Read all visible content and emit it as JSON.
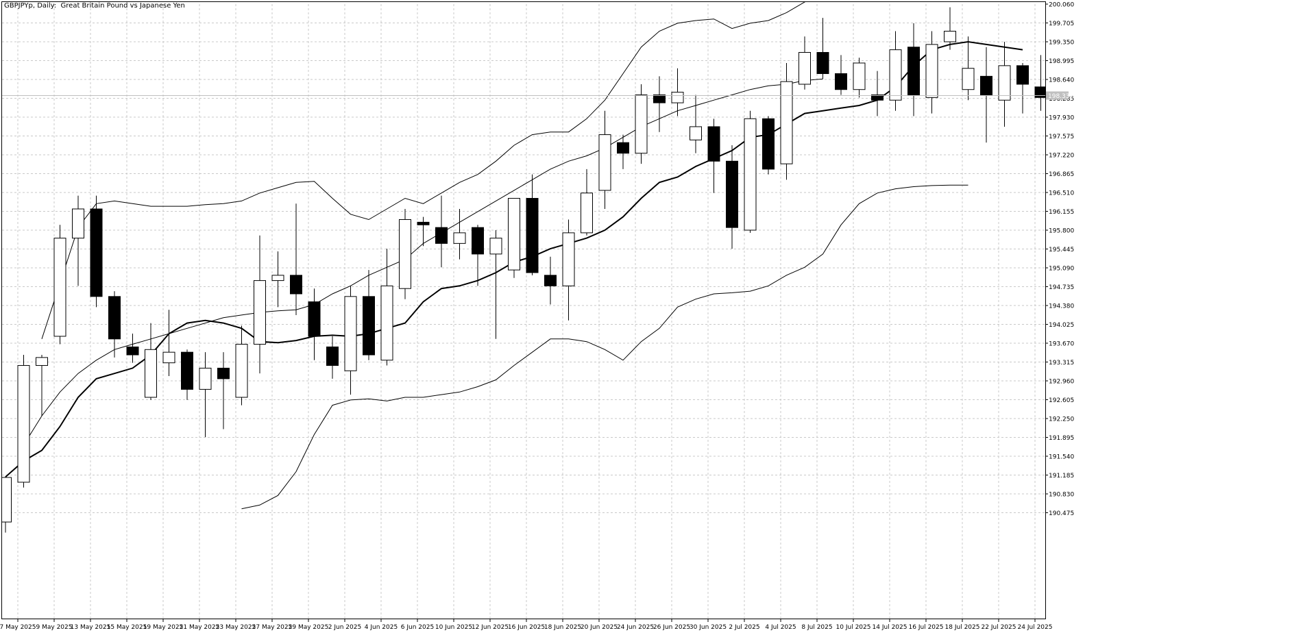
{
  "header": {
    "symbol_label": "GBPJPYp, Daily:",
    "description": "Great Britain Pound vs Japanese Yen"
  },
  "current_price_label": "198.337",
  "colors": {
    "background": "#ffffff",
    "grid": "#c8c8c8",
    "axis": "#000000",
    "candle_up_fill": "#ffffff",
    "candle_down_fill": "#000000",
    "candle_border": "#000000",
    "ma_line": "#000000",
    "band_line": "#000000",
    "price_tag_bg": "#c0c0c0",
    "price_tag_text": "#ffffff"
  },
  "chart_data": {
    "type": "candlestick",
    "title": "GBPJPYp, Daily:  Great Britain Pound vs Japanese Yen",
    "xlabel": "",
    "ylabel": "",
    "ylim": [
      190.12,
      200.06
    ],
    "y_ticks": [
      "200.060",
      "199.705",
      "199.350",
      "198.995",
      "198.640",
      "198.285",
      "197.930",
      "197.575",
      "197.220",
      "196.865",
      "196.510",
      "196.155",
      "195.800",
      "195.445",
      "195.090",
      "194.735",
      "194.380",
      "194.025",
      "193.670",
      "193.315",
      "192.960",
      "192.605",
      "192.250",
      "191.895",
      "191.540",
      "191.185",
      "190.830",
      "190.475"
    ],
    "x_labels": [
      "7 May 2025",
      "9 May 2025",
      "13 May 2025",
      "15 May 2025",
      "19 May 2025",
      "21 May 2025",
      "23 May 2025",
      "27 May 2025",
      "29 May 2025",
      "2 Jun 2025",
      "4 Jun 2025",
      "6 Jun 2025",
      "10 Jun 2025",
      "12 Jun 2025",
      "16 Jun 2025",
      "18 Jun 2025",
      "20 Jun 2025",
      "24 Jun 2025",
      "26 Jun 2025",
      "30 Jun 2025",
      "2 Jul 2025",
      "4 Jul 2025",
      "8 Jul 2025",
      "10 Jul 2025",
      "14 Jul 2025",
      "16 Jul 2025",
      "18 Jul 2025",
      "22 Jul 2025",
      "24 Jul 2025"
    ],
    "grid": true,
    "candles": [
      {
        "o": 190.3,
        "h": 191.15,
        "l": 190.1,
        "c": 191.14
      },
      {
        "o": 191.05,
        "h": 193.45,
        "l": 190.95,
        "c": 193.25
      },
      {
        "o": 193.25,
        "h": 193.45,
        "l": 192.3,
        "c": 193.4
      },
      {
        "o": 193.8,
        "h": 195.9,
        "l": 193.65,
        "c": 195.65
      },
      {
        "o": 195.65,
        "h": 196.45,
        "l": 194.75,
        "c": 196.2
      },
      {
        "o": 196.2,
        "h": 196.45,
        "l": 194.35,
        "c": 194.55
      },
      {
        "o": 194.55,
        "h": 194.65,
        "l": 193.4,
        "c": 193.75
      },
      {
        "o": 193.6,
        "h": 193.85,
        "l": 193.3,
        "c": 193.45
      },
      {
        "o": 192.65,
        "h": 194.05,
        "l": 192.6,
        "c": 193.55
      },
      {
        "o": 193.3,
        "h": 194.3,
        "l": 193.05,
        "c": 193.5
      },
      {
        "o": 193.5,
        "h": 193.55,
        "l": 192.6,
        "c": 192.8
      },
      {
        "o": 192.8,
        "h": 193.5,
        "l": 191.9,
        "c": 193.2
      },
      {
        "o": 193.2,
        "h": 193.5,
        "l": 192.05,
        "c": 193.0
      },
      {
        "o": 192.65,
        "h": 194.0,
        "l": 192.5,
        "c": 193.65
      },
      {
        "o": 193.65,
        "h": 195.7,
        "l": 193.1,
        "c": 194.85
      },
      {
        "o": 194.85,
        "h": 195.4,
        "l": 194.35,
        "c": 194.95
      },
      {
        "o": 194.95,
        "h": 196.3,
        "l": 194.2,
        "c": 194.6
      },
      {
        "o": 194.45,
        "h": 194.7,
        "l": 193.35,
        "c": 193.8
      },
      {
        "o": 193.6,
        "h": 193.8,
        "l": 193.0,
        "c": 193.25
      },
      {
        "o": 193.15,
        "h": 194.75,
        "l": 192.7,
        "c": 194.55
      },
      {
        "o": 194.55,
        "h": 195.05,
        "l": 193.35,
        "c": 193.45
      },
      {
        "o": 193.35,
        "h": 195.45,
        "l": 193.25,
        "c": 194.75
      },
      {
        "o": 194.7,
        "h": 196.2,
        "l": 194.5,
        "c": 196.0
      },
      {
        "o": 195.95,
        "h": 196.05,
        "l": 195.5,
        "c": 195.9
      },
      {
        "o": 195.85,
        "h": 196.45,
        "l": 195.1,
        "c": 195.55
      },
      {
        "o": 195.55,
        "h": 196.2,
        "l": 195.25,
        "c": 195.75
      },
      {
        "o": 195.85,
        "h": 195.9,
        "l": 194.75,
        "c": 195.35
      },
      {
        "o": 195.35,
        "h": 195.8,
        "l": 193.75,
        "c": 195.65
      },
      {
        "o": 195.05,
        "h": 196.4,
        "l": 194.9,
        "c": 196.4
      },
      {
        "o": 196.4,
        "h": 196.85,
        "l": 194.95,
        "c": 195.0
      },
      {
        "o": 194.95,
        "h": 195.3,
        "l": 194.4,
        "c": 194.75
      },
      {
        "o": 194.75,
        "h": 196.0,
        "l": 194.1,
        "c": 195.75
      },
      {
        "o": 195.75,
        "h": 196.95,
        "l": 195.7,
        "c": 196.5
      },
      {
        "o": 196.55,
        "h": 198.05,
        "l": 196.2,
        "c": 197.6
      },
      {
        "o": 197.45,
        "h": 197.6,
        "l": 196.95,
        "c": 197.25
      },
      {
        "o": 197.25,
        "h": 198.55,
        "l": 197.05,
        "c": 198.35
      },
      {
        "o": 198.35,
        "h": 198.7,
        "l": 197.65,
        "c": 198.2
      },
      {
        "o": 198.2,
        "h": 198.85,
        "l": 197.95,
        "c": 198.4
      },
      {
        "o": 197.5,
        "h": 198.35,
        "l": 197.25,
        "c": 197.75
      },
      {
        "o": 197.75,
        "h": 197.9,
        "l": 196.5,
        "c": 197.1
      },
      {
        "o": 197.1,
        "h": 197.4,
        "l": 195.45,
        "c": 195.85
      },
      {
        "o": 195.8,
        "h": 198.05,
        "l": 195.75,
        "c": 197.9
      },
      {
        "o": 197.9,
        "h": 197.95,
        "l": 196.85,
        "c": 196.95
      },
      {
        "o": 197.05,
        "h": 198.95,
        "l": 196.75,
        "c": 198.6
      },
      {
        "o": 198.55,
        "h": 199.45,
        "l": 198.45,
        "c": 199.15
      },
      {
        "o": 199.15,
        "h": 199.8,
        "l": 198.65,
        "c": 198.75
      },
      {
        "o": 198.75,
        "h": 199.1,
        "l": 198.35,
        "c": 198.45
      },
      {
        "o": 198.45,
        "h": 199.05,
        "l": 198.3,
        "c": 198.95
      },
      {
        "o": 198.35,
        "h": 198.8,
        "l": 197.95,
        "c": 198.25
      },
      {
        "o": 198.25,
        "h": 199.55,
        "l": 198.05,
        "c": 199.2
      },
      {
        "o": 199.25,
        "h": 199.7,
        "l": 197.95,
        "c": 198.35
      },
      {
        "o": 198.3,
        "h": 199.55,
        "l": 198.0,
        "c": 199.3
      },
      {
        "o": 199.35,
        "h": 200.0,
        "l": 199.2,
        "c": 199.55
      },
      {
        "o": 198.45,
        "h": 199.45,
        "l": 198.25,
        "c": 198.85
      },
      {
        "o": 198.7,
        "h": 199.25,
        "l": 197.45,
        "c": 198.35
      },
      {
        "o": 198.25,
        "h": 199.35,
        "l": 197.75,
        "c": 198.9
      },
      {
        "o": 198.9,
        "h": 198.95,
        "l": 198.0,
        "c": 198.55
      },
      {
        "o": 198.5,
        "h": 199.1,
        "l": 198.05,
        "c": 198.3
      }
    ],
    "ma": [
      191.15,
      191.45,
      191.65,
      192.1,
      192.65,
      193.0,
      193.1,
      193.2,
      193.45,
      193.85,
      194.05,
      194.1,
      194.05,
      193.95,
      193.7,
      193.68,
      193.72,
      193.8,
      193.82,
      193.8,
      193.85,
      193.95,
      194.05,
      194.45,
      194.7,
      194.75,
      194.85,
      195.0,
      195.2,
      195.3,
      195.45,
      195.55,
      195.65,
      195.8,
      196.05,
      196.4,
      196.7,
      196.8,
      197.0,
      197.15,
      197.3,
      197.55,
      197.6,
      197.8,
      198.0,
      198.05,
      198.1,
      198.15,
      198.25,
      198.5,
      198.9,
      199.2,
      199.3,
      199.35,
      199.3,
      199.25,
      199.2
    ],
    "upper_band": [
      null,
      null,
      193.75,
      194.8,
      195.85,
      196.3,
      196.35,
      196.3,
      196.25,
      196.25,
      196.25,
      196.28,
      196.3,
      196.35,
      196.5,
      196.6,
      196.7,
      196.72,
      196.4,
      196.1,
      196.0,
      196.2,
      196.4,
      196.3,
      196.5,
      196.7,
      196.85,
      197.1,
      197.4,
      197.6,
      197.65,
      197.65,
      197.9,
      198.25,
      198.75,
      199.25,
      199.55,
      199.7,
      199.75,
      199.78,
      199.6,
      199.7,
      199.75,
      199.9,
      200.1,
      200.3,
      200.5,
      200.7,
      200.9,
      200.8,
      200.8,
      200.85,
      200.88,
      200.9,
      200.95
    ],
    "middle_band": [
      null,
      191.75,
      192.3,
      192.75,
      193.1,
      193.35,
      193.55,
      193.65,
      193.75,
      193.85,
      193.95,
      194.05,
      194.15,
      194.2,
      194.25,
      194.28,
      194.3,
      194.4,
      194.6,
      194.75,
      194.95,
      195.1,
      195.25,
      195.55,
      195.75,
      195.95,
      196.15,
      196.35,
      196.55,
      196.75,
      196.95,
      197.1,
      197.2,
      197.35,
      197.55,
      197.75,
      197.9,
      198.05,
      198.15,
      198.25,
      198.35,
      198.45,
      198.52,
      198.55,
      198.62,
      198.65
    ],
    "lower_band": [
      null,
      null,
      null,
      null,
      null,
      null,
      null,
      null,
      null,
      null,
      null,
      null,
      null,
      190.55,
      190.62,
      190.8,
      191.25,
      191.95,
      192.5,
      192.6,
      192.62,
      192.58,
      192.65,
      192.65,
      192.7,
      192.75,
      192.85,
      192.98,
      193.25,
      193.5,
      193.75,
      193.75,
      193.7,
      193.55,
      193.35,
      193.7,
      193.95,
      194.35,
      194.5,
      194.6,
      194.62,
      194.65,
      194.75,
      194.95,
      195.1,
      195.35,
      195.9,
      196.3,
      196.5,
      196.58,
      196.62,
      196.64,
      196.65,
      196.65
    ],
    "current_price": 198.337
  }
}
